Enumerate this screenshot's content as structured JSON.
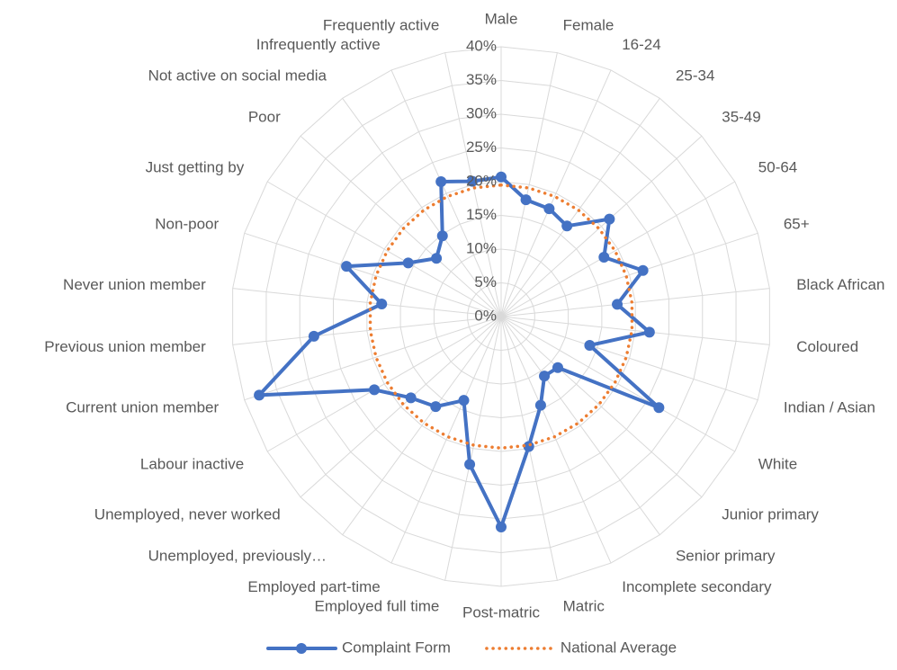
{
  "chart_data": {
    "type": "radar",
    "categories": [
      "Male",
      "Female",
      "16-24",
      "25-34",
      "35-49",
      "50-64",
      "65+",
      "Black African",
      "Coloured",
      "Indian / Asian",
      "White",
      "Junior primary",
      "Senior primary",
      "Incomplete secondary",
      "Matric",
      "Post-matric",
      "Employed full time",
      "Employed part-time",
      "Unemployed, previously…",
      "Unemployed, never worked",
      "Labour inactive",
      "Current union member",
      "Previous union member",
      "Never union member",
      "Non-poor",
      "Just getting by",
      "Poor",
      "Not active on social media",
      "Infrequently active",
      "Frequently active"
    ],
    "series": [
      {
        "name": "Complaint Form",
        "color": "#4472c4",
        "style": "solid-marker",
        "values": [
          20.7,
          17.7,
          17.5,
          16.6,
          21.6,
          17.6,
          22.1,
          17.3,
          22.1,
          13.8,
          27,
          11.3,
          10.9,
          14.4,
          19.7,
          31.2,
          22.4,
          13.6,
          16.5,
          18,
          21.7,
          37.7,
          27.9,
          17.8,
          24.1,
          15.9,
          12.9,
          14.8,
          21.9,
          20.5
        ]
      },
      {
        "name": "National Average",
        "color": "#ed7d31",
        "style": "dotted",
        "values": [
          19.5,
          19.5,
          19.5,
          19.5,
          19.5,
          19.5,
          19.5,
          19.5,
          19.5,
          19.5,
          19.5,
          19.5,
          19.5,
          19.5,
          19.5,
          19.5,
          19.5,
          19.5,
          19.5,
          19.5,
          19.5,
          19.5,
          19.5,
          19.5,
          19.5,
          19.5,
          19.5,
          19.5,
          19.5,
          19.5
        ]
      }
    ],
    "ylim": [
      0,
      40
    ],
    "yticks": [
      {
        "value": 0,
        "label": "0%"
      },
      {
        "value": 5,
        "label": "5%"
      },
      {
        "value": 10,
        "label": "10%"
      },
      {
        "value": 15,
        "label": "15%"
      },
      {
        "value": 20,
        "label": "20%"
      },
      {
        "value": 25,
        "label": "25%"
      },
      {
        "value": 30,
        "label": "30%"
      },
      {
        "value": 35,
        "label": "35%"
      },
      {
        "value": 40,
        "label": "40%"
      }
    ],
    "grid": true,
    "legend": "bottom"
  }
}
